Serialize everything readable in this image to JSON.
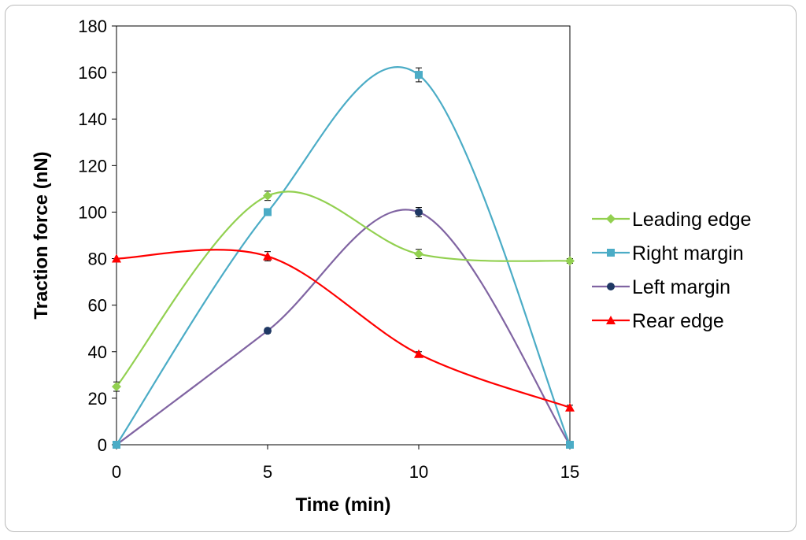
{
  "chart_data": {
    "type": "line",
    "title": "",
    "xlabel": "Time (min)",
    "ylabel": "Traction force (nN)",
    "xlim": [
      0,
      15
    ],
    "ylim": [
      0,
      180
    ],
    "x_ticks": [
      "0",
      "5",
      "10",
      "15"
    ],
    "y_ticks": [
      "0",
      "20",
      "40",
      "60",
      "80",
      "100",
      "120",
      "140",
      "160",
      "180"
    ],
    "grid": false,
    "smooth": true,
    "legend_position": "right",
    "x": [
      0,
      5,
      10,
      15
    ],
    "series": [
      {
        "name": "Leading edge",
        "color": "#92d050",
        "marker": "diamond",
        "values": [
          25,
          107,
          82,
          79
        ],
        "errors": [
          2,
          2,
          2,
          1
        ]
      },
      {
        "name": "Right margin",
        "color": "#4bacc6",
        "marker": "square",
        "values": [
          0,
          100,
          159,
          0
        ],
        "errors": [
          0,
          1,
          3,
          0
        ]
      },
      {
        "name": "Left margin",
        "color": "#8064a2",
        "marker": "circle",
        "values": [
          0,
          49,
          100,
          0
        ],
        "errors": [
          0,
          1,
          2,
          0
        ]
      },
      {
        "name": "Rear edge",
        "color": "#ff0000",
        "marker": "triangle",
        "values": [
          80,
          81,
          39,
          16
        ],
        "errors": [
          0,
          2,
          1,
          1
        ]
      }
    ]
  }
}
